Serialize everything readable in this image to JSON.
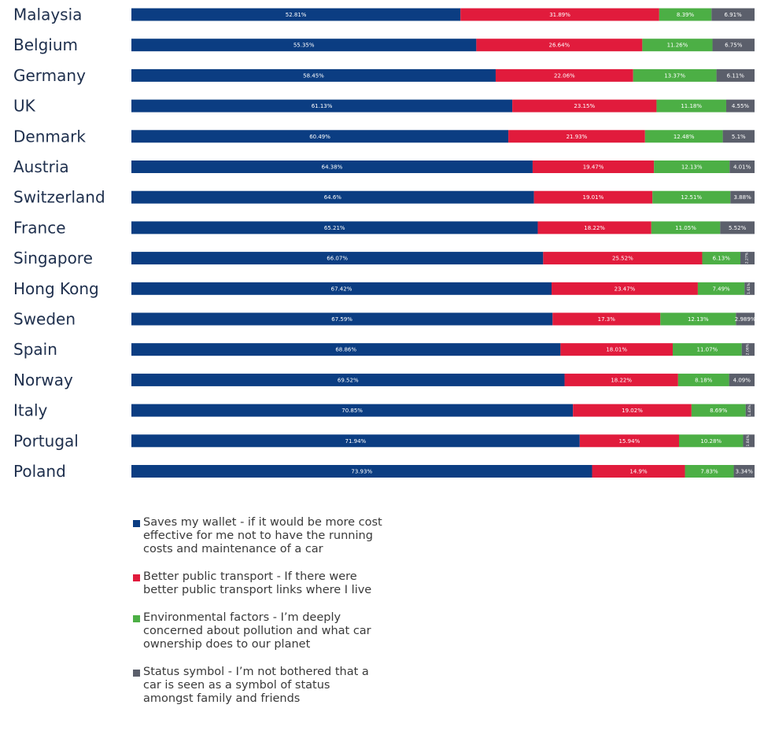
{
  "chart_data": {
    "type": "bar",
    "orientation": "horizontal",
    "stacked": true,
    "normalized": true,
    "categories": [
      "Malaysia",
      "Belgium",
      "Germany",
      "UK",
      "Denmark",
      "Austria",
      "Switzerland",
      "France",
      "Singapore",
      "Hong Kong",
      "Sweden",
      "Spain",
      "Norway",
      "Italy",
      "Portugal",
      "Poland"
    ],
    "series": [
      {
        "name": "Saves my wallet - if it would be more cost effective for me not to have the running costs and maintenance of a car",
        "color": "#0b3d82",
        "values": [
          52.81,
          55.35,
          58.45,
          61.13,
          60.49,
          64.38,
          64.6,
          65.21,
          66.07,
          67.42,
          67.59,
          68.86,
          69.52,
          70.85,
          71.94,
          73.93
        ],
        "labels": [
          "52.81%",
          "55.35%",
          "58.45%",
          "61.13%",
          "60.49%",
          "64.38%",
          "64.6%",
          "65.21%",
          "66.07%",
          "67.42%",
          "67.59%",
          "68.86%",
          "69.52%",
          "70.85%",
          "71.94%",
          "73.93%"
        ]
      },
      {
        "name": "Better public transport - If there were better public transport links where I live",
        "color": "#e11b3c",
        "values": [
          31.89,
          26.64,
          22.06,
          23.15,
          21.93,
          19.47,
          19.01,
          18.22,
          25.52,
          23.47,
          17.3,
          18.01,
          18.22,
          19.02,
          15.94,
          14.9
        ],
        "labels": [
          "31.89%",
          "26.64%",
          "22.06%",
          "23.15%",
          "21.93%",
          "19.47%",
          "19.01%",
          "18.22%",
          "25.52%",
          "23.47%",
          "17.3%",
          "18.01%",
          "18.22%",
          "19.02%",
          "15.94%",
          "14.9%"
        ]
      },
      {
        "name": "Environmental factors - I’m deeply concerned about pollution and what car ownership does to our planet",
        "color": "#4caf45",
        "values": [
          8.39,
          11.26,
          13.37,
          11.18,
          12.48,
          12.13,
          12.51,
          11.05,
          6.13,
          7.49,
          12.13,
          11.07,
          8.18,
          8.69,
          10.28,
          7.83
        ],
        "labels": [
          "8.39%",
          "11.26%",
          "13.37%",
          "11.18%",
          "12.48%",
          "12.13%",
          "12.51%",
          "11.05%",
          "6.13%",
          "7.49%",
          "12.13%",
          "11.07%",
          "8.18%",
          "8.69%",
          "10.28%",
          "7.83%"
        ]
      },
      {
        "name": "Status symbol - I’m not bothered that a car is seen as a symbol of status amongst family and friends",
        "color": "#5b5f6b",
        "values": [
          6.91,
          6.75,
          6.11,
          4.55,
          5.1,
          4.01,
          3.88,
          5.52,
          2.27,
          1.61,
          2.989,
          2.06,
          4.09,
          1.43,
          1.84,
          3.34
        ],
        "labels": [
          "6.91%",
          "6.75%",
          "6.11%",
          "4.55%",
          "5.1%",
          "4.01%",
          "3.88%",
          "5.52%",
          "2.27%",
          "1.61%",
          "2.989%",
          "2.06%",
          "4.09%",
          "1.43%",
          "1.84%",
          "3.34%"
        ]
      }
    ],
    "legend_position": "bottom-left",
    "grid": false
  }
}
